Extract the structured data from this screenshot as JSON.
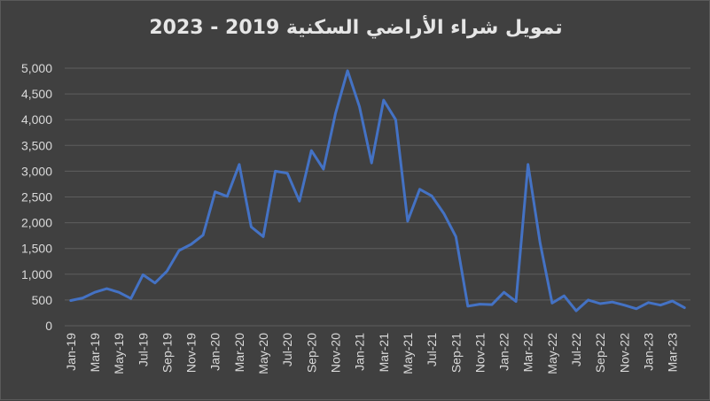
{
  "chart_data": {
    "type": "line",
    "title": "تمويل شراء الأراضي السكنية 2019 - 2023",
    "xlabel": "",
    "ylabel": "",
    "ylim": [
      0,
      5000
    ],
    "yticks": [
      0,
      500,
      1000,
      1500,
      2000,
      2500,
      3000,
      3500,
      4000,
      4500,
      5000
    ],
    "ytick_labels": [
      "0",
      "500",
      "1,000",
      "1,500",
      "2,000",
      "2,500",
      "3,000",
      "3,500",
      "4,000",
      "4,500",
      "5,000"
    ],
    "grid": true,
    "line_color": "#4472C4",
    "x": [
      "Jan-19",
      "Feb-19",
      "Mar-19",
      "Apr-19",
      "May-19",
      "Jun-19",
      "Jul-19",
      "Aug-19",
      "Sep-19",
      "Oct-19",
      "Nov-19",
      "Dec-19",
      "Jan-20",
      "Feb-20",
      "Mar-20",
      "Apr-20",
      "May-20",
      "Jun-20",
      "Jul-20",
      "Aug-20",
      "Sep-20",
      "Oct-20",
      "Nov-20",
      "Dec-20",
      "Jan-21",
      "Feb-21",
      "Mar-21",
      "Apr-21",
      "May-21",
      "Jun-21",
      "Jul-21",
      "Aug-21",
      "Sep-21",
      "Oct-21",
      "Nov-21",
      "Dec-21",
      "Jan-22",
      "Feb-22",
      "Mar-22",
      "Apr-22",
      "May-22",
      "Jun-22",
      "Jul-22",
      "Aug-22",
      "Sep-22",
      "Oct-22",
      "Nov-22",
      "Dec-22",
      "Jan-23",
      "Feb-23",
      "Mar-23",
      "Apr-23"
    ],
    "x_tick_labels": [
      "Jan-19",
      "Mar-19",
      "May-19",
      "Jul-19",
      "Sep-19",
      "Nov-19",
      "Jan-20",
      "Mar-20",
      "May-20",
      "Jul-20",
      "Sep-20",
      "Nov-20",
      "Jan-21",
      "Mar-21",
      "May-21",
      "Jul-21",
      "Sep-21",
      "Nov-21",
      "Jan-22",
      "Mar-22",
      "May-22",
      "Jul-22",
      "Sep-22",
      "Nov-22",
      "Jan-23",
      "Mar-23"
    ],
    "series": [
      {
        "values": [
          490,
          540,
          650,
          720,
          650,
          530,
          990,
          830,
          1060,
          1460,
          1580,
          1760,
          2600,
          2510,
          3130,
          1920,
          1730,
          3000,
          2960,
          2420,
          3400,
          3040,
          4120,
          4950,
          4250,
          3160,
          4380,
          4000,
          2030,
          2650,
          2520,
          2180,
          1730,
          380,
          420,
          410,
          650,
          470,
          3130,
          1610,
          440,
          580,
          290,
          500,
          430,
          460,
          400,
          330,
          450,
          400,
          480,
          350
        ]
      }
    ]
  }
}
